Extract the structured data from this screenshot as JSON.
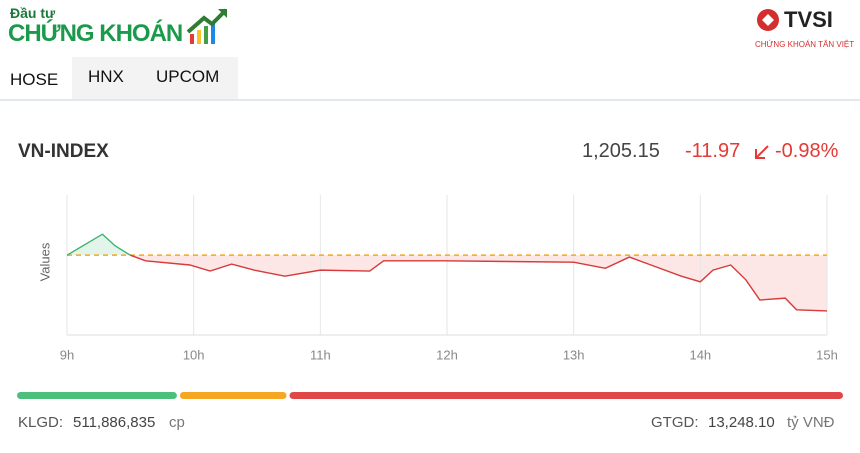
{
  "header": {
    "logo_top": "Đầu tư",
    "logo_main": "CHỨNG KHOÁN",
    "brand": "TVSI",
    "brand_tagline": "CHỨNG KHOÁN TÂN VIỆT"
  },
  "tabs": [
    "HOSE",
    "HNX",
    "UPCOM"
  ],
  "index": {
    "name": "VN-INDEX",
    "value": "1,205.15",
    "change": "-11.97",
    "change_percent": "-0.98%"
  },
  "chart_data": {
    "type": "line",
    "y_label": "Values",
    "xlim": [
      9,
      15
    ],
    "xticks": [
      {
        "value": 9,
        "label": "9h"
      },
      {
        "value": 10,
        "label": "10h"
      },
      {
        "value": 11,
        "label": "11h"
      },
      {
        "value": 12,
        "label": "12h"
      },
      {
        "value": 13,
        "label": "13h"
      },
      {
        "value": 14,
        "label": "14h"
      },
      {
        "value": 15,
        "label": "15h"
      }
    ],
    "ylim": [
      1200,
      1230
    ],
    "reference": 1217.12,
    "reference_color": "#f5a623",
    "grid": true,
    "series": [
      {
        "color": "#3cb371",
        "fill": "#e3f5ea",
        "x": [
          9.0,
          9.28,
          9.38,
          9.5
        ],
        "values": [
          1217.1,
          1221.6,
          1219.1,
          1217.1
        ]
      },
      {
        "color": "#d63a3a",
        "fill": "#fde6e6",
        "x": [
          9.5,
          9.62,
          9.97,
          10.13,
          10.3,
          10.48,
          10.72,
          11.0,
          11.39,
          11.5,
          11.98,
          13.0,
          13.25,
          13.44,
          13.61,
          13.85,
          14.0,
          14.1,
          14.24,
          14.36,
          14.47,
          14.67,
          14.76,
          15.0
        ],
        "values": [
          1217.1,
          1215.9,
          1215.0,
          1213.7,
          1215.2,
          1213.9,
          1212.6,
          1213.9,
          1213.7,
          1215.9,
          1215.9,
          1215.6,
          1214.3,
          1216.7,
          1215.0,
          1212.6,
          1211.4,
          1213.9,
          1215.0,
          1211.8,
          1207.5,
          1207.9,
          1205.4,
          1205.15
        ]
      }
    ],
    "breadth": {
      "values": [
        19.5,
        13,
        67.5
      ],
      "colors": [
        "#4cbf7a",
        "#f5a623",
        "#e04848"
      ]
    }
  },
  "footer": {
    "volume_label": "KLGD:",
    "volume_value": "511,886,835",
    "volume_unit": "cp",
    "value_label": "GTGD:",
    "value_value": "13,248.10",
    "value_unit": "tỷ VNĐ"
  }
}
